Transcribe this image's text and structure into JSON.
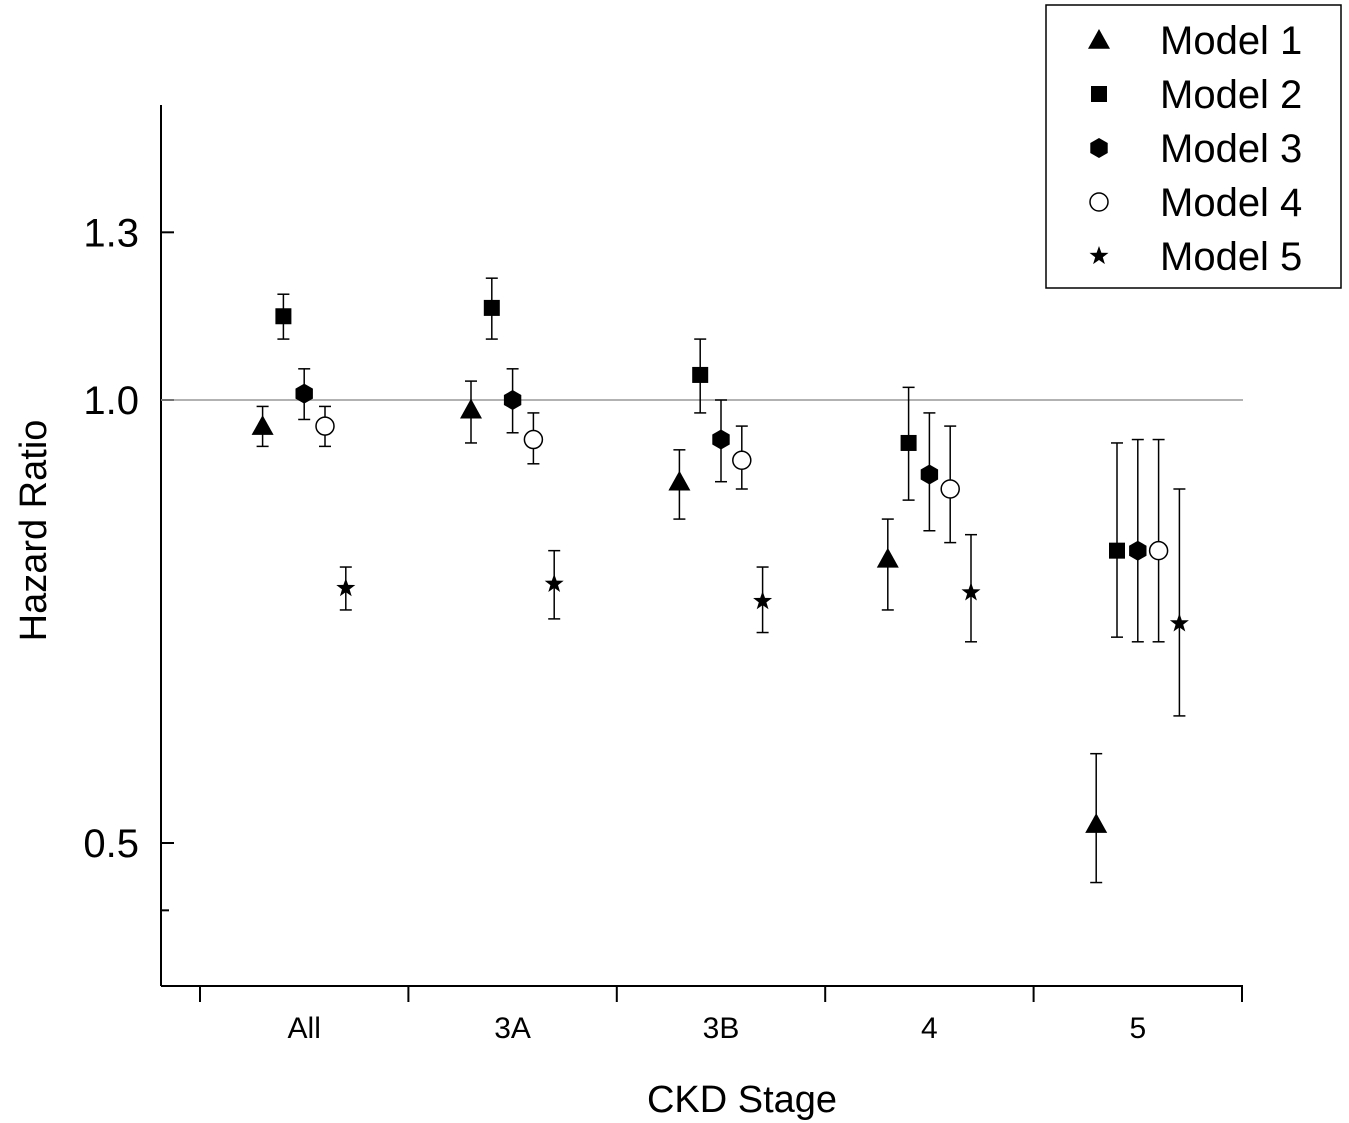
{
  "chart_data": {
    "type": "scatter",
    "xlabel": "CKD Stage",
    "ylabel": "Hazard Ratio",
    "categories": [
      "All",
      "3A",
      "3B",
      "4",
      "5"
    ],
    "y_scale": "log",
    "ylim": [
      0.4,
      1.3
    ],
    "y_ticks": [
      {
        "value": 0.5,
        "label": "0.5"
      },
      {
        "value": 1.0,
        "label": "1.0"
      },
      {
        "value": 1.3,
        "label": "1.3"
      }
    ],
    "y_minor_ticks": [
      0.45
    ],
    "reference_line": 1.0,
    "legend_position": "top-right",
    "series": [
      {
        "name": "Model 1",
        "marker": "triangle",
        "color": "#000000",
        "points": [
          {
            "category": "All",
            "hr": 0.96,
            "lower": 0.93,
            "upper": 0.99
          },
          {
            "category": "3A",
            "hr": 0.985,
            "lower": 0.935,
            "upper": 1.03
          },
          {
            "category": "3B",
            "hr": 0.88,
            "lower": 0.83,
            "upper": 0.925
          },
          {
            "category": "4",
            "hr": 0.78,
            "lower": 0.72,
            "upper": 0.83
          },
          {
            "category": "5",
            "hr": 0.515,
            "lower": 0.47,
            "upper": 0.575
          }
        ]
      },
      {
        "name": "Model 2",
        "marker": "square",
        "color": "#000000",
        "points": [
          {
            "category": "All",
            "hr": 1.14,
            "lower": 1.1,
            "upper": 1.18
          },
          {
            "category": "3A",
            "hr": 1.155,
            "lower": 1.1,
            "upper": 1.21
          },
          {
            "category": "3B",
            "hr": 1.04,
            "lower": 0.98,
            "upper": 1.1
          },
          {
            "category": "4",
            "hr": 0.935,
            "lower": 0.855,
            "upper": 1.02
          },
          {
            "category": "5",
            "hr": 0.79,
            "lower": 0.69,
            "upper": 0.935
          }
        ]
      },
      {
        "name": "Model 3",
        "marker": "hexagon",
        "color": "#000000",
        "points": [
          {
            "category": "All",
            "hr": 1.01,
            "lower": 0.97,
            "upper": 1.05
          },
          {
            "category": "3A",
            "hr": 1.0,
            "lower": 0.95,
            "upper": 1.05
          },
          {
            "category": "3B",
            "hr": 0.94,
            "lower": 0.88,
            "upper": 1.0
          },
          {
            "category": "4",
            "hr": 0.89,
            "lower": 0.815,
            "upper": 0.98
          },
          {
            "category": "5",
            "hr": 0.79,
            "lower": 0.685,
            "upper": 0.94
          }
        ]
      },
      {
        "name": "Model 4",
        "marker": "open-circle",
        "color": "#ffffff",
        "points": [
          {
            "category": "All",
            "hr": 0.96,
            "lower": 0.93,
            "upper": 0.99
          },
          {
            "category": "3A",
            "hr": 0.94,
            "lower": 0.905,
            "upper": 0.98
          },
          {
            "category": "3B",
            "hr": 0.91,
            "lower": 0.87,
            "upper": 0.96
          },
          {
            "category": "4",
            "hr": 0.87,
            "lower": 0.8,
            "upper": 0.96
          },
          {
            "category": "5",
            "hr": 0.79,
            "lower": 0.685,
            "upper": 0.94
          }
        ]
      },
      {
        "name": "Model 5",
        "marker": "star",
        "color": "#000000",
        "points": [
          {
            "category": "All",
            "hr": 0.745,
            "lower": 0.72,
            "upper": 0.77
          },
          {
            "category": "3A",
            "hr": 0.75,
            "lower": 0.71,
            "upper": 0.79
          },
          {
            "category": "3B",
            "hr": 0.73,
            "lower": 0.695,
            "upper": 0.77
          },
          {
            "category": "4",
            "hr": 0.74,
            "lower": 0.685,
            "upper": 0.81
          },
          {
            "category": "5",
            "hr": 0.705,
            "lower": 0.61,
            "upper": 0.87
          }
        ]
      }
    ]
  }
}
